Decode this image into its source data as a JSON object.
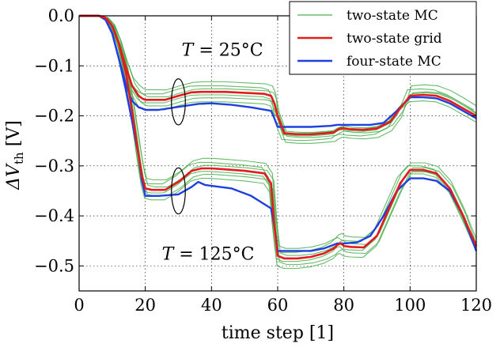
{
  "chart_data": {
    "type": "line",
    "xlabel": "time step [1]",
    "ylabel": {
      "prefix": "ΔV",
      "subscript": "th",
      "suffix": " [V]"
    },
    "xlim": [
      0,
      120
    ],
    "ylim": [
      -0.55,
      0.0
    ],
    "x_ticks": [
      0,
      20,
      40,
      60,
      80,
      100,
      120
    ],
    "x_tick_labels": [
      "0",
      "20",
      "40",
      "60",
      "80",
      "100",
      "120"
    ],
    "y_ticks": [
      0.0,
      -0.1,
      -0.2,
      -0.3,
      -0.4,
      -0.5
    ],
    "y_tick_labels": [
      "0.0",
      "−0.1",
      "−0.2",
      "−0.3",
      "−0.4",
      "−0.5"
    ],
    "grid": true,
    "legend_position": "top-right",
    "annotations": [
      {
        "text": "T = 25°C",
        "italic_prefix": "T",
        "rest": " = 25°C",
        "x": 31,
        "y": -0.067
      },
      {
        "text": "T = 125°C",
        "italic_prefix": "T",
        "rest": " = 125°C",
        "x": 25,
        "y": -0.475
      }
    ],
    "ellipses": [
      {
        "cx": 30,
        "cy": -0.172,
        "rx": 2.1,
        "ry": 0.046
      },
      {
        "cx": 30,
        "cy": -0.35,
        "rx": 2.1,
        "ry": 0.046
      }
    ],
    "series": [
      {
        "name": "two-state MC",
        "color": "#4caf50",
        "style": "thin",
        "mc_offsets": {
          "t25_a": [
            -0.012,
            -0.006,
            0.0,
            0.006,
            0.012,
            0.02,
            -0.02
          ],
          "t25_b": [
            0.004,
            0.002,
            0.0,
            -0.006,
            -0.012,
            -0.018,
            -0.003
          ],
          "t25_c": [
            0.004,
            -0.004,
            0.0,
            0.006,
            0.012,
            0.02,
            -0.012
          ],
          "t125_a": [
            -0.012,
            -0.006,
            0.0,
            0.006,
            0.012,
            0.02,
            -0.02
          ],
          "t125_b": [
            -0.012,
            -0.006,
            0.0,
            0.006,
            0.012,
            0.02,
            -0.02
          ],
          "t125_c": [
            -0.004,
            -0.002,
            0.0,
            0.004,
            0.008,
            0.014,
            -0.008
          ],
          "x_shift": [
            0.6,
            -0.4,
            0.2,
            0.8,
            -0.8,
            0.4,
            -0.2
          ]
        }
      },
      {
        "name": "two-state grid",
        "color": "#e41a1c",
        "style": "thick",
        "t25": {
          "x": [
            0,
            6,
            8,
            10,
            12,
            14,
            16,
            18,
            19,
            20,
            22,
            26,
            30,
            34,
            37,
            40,
            44,
            50,
            56,
            58,
            59,
            60,
            62,
            66,
            70,
            74,
            77,
            78,
            79,
            80,
            82,
            86,
            90,
            94,
            97,
            100,
            104,
            108,
            112,
            116,
            120
          ],
          "y": [
            0.0,
            0.0,
            -0.004,
            -0.02,
            -0.055,
            -0.1,
            -0.14,
            -0.16,
            -0.165,
            -0.168,
            -0.168,
            -0.168,
            -0.16,
            -0.153,
            -0.152,
            -0.152,
            -0.152,
            -0.154,
            -0.156,
            -0.16,
            -0.175,
            -0.2,
            -0.235,
            -0.237,
            -0.237,
            -0.235,
            -0.233,
            -0.228,
            -0.225,
            -0.225,
            -0.227,
            -0.228,
            -0.225,
            -0.212,
            -0.185,
            -0.16,
            -0.158,
            -0.16,
            -0.17,
            -0.185,
            -0.2
          ]
        },
        "t125": {
          "x": [
            0,
            6,
            8,
            10,
            12,
            14,
            16,
            18,
            19,
            20,
            22,
            26,
            30,
            34,
            37,
            40,
            44,
            50,
            56,
            58,
            59,
            60,
            62,
            66,
            70,
            74,
            77,
            78,
            79,
            80,
            82,
            86,
            90,
            94,
            97,
            100,
            104,
            108,
            112,
            116,
            120
          ],
          "y": [
            0.0,
            0.0,
            -0.004,
            -0.02,
            -0.055,
            -0.11,
            -0.19,
            -0.28,
            -0.32,
            -0.345,
            -0.348,
            -0.348,
            -0.332,
            -0.31,
            -0.305,
            -0.305,
            -0.307,
            -0.31,
            -0.315,
            -0.335,
            -0.42,
            -0.48,
            -0.485,
            -0.485,
            -0.482,
            -0.475,
            -0.465,
            -0.458,
            -0.455,
            -0.46,
            -0.462,
            -0.463,
            -0.44,
            -0.38,
            -0.335,
            -0.308,
            -0.308,
            -0.315,
            -0.345,
            -0.4,
            -0.46
          ]
        }
      },
      {
        "name": "four-state MC",
        "color": "#1f3fe0",
        "style": "thick",
        "t25": {
          "x": [
            0,
            6,
            8,
            10,
            12,
            14,
            16,
            18,
            19,
            20,
            24,
            30,
            36,
            40,
            46,
            52,
            58,
            59,
            60,
            64,
            70,
            76,
            78,
            80,
            84,
            88,
            92,
            96,
            100,
            104,
            108,
            112,
            116,
            120
          ],
          "y": [
            0.0,
            0.0,
            -0.008,
            -0.035,
            -0.085,
            -0.135,
            -0.17,
            -0.183,
            -0.185,
            -0.188,
            -0.188,
            -0.182,
            -0.176,
            -0.175,
            -0.178,
            -0.183,
            -0.19,
            -0.205,
            -0.222,
            -0.222,
            -0.222,
            -0.22,
            -0.218,
            -0.218,
            -0.218,
            -0.218,
            -0.214,
            -0.19,
            -0.163,
            -0.163,
            -0.165,
            -0.175,
            -0.19,
            -0.205
          ]
        },
        "t125": {
          "x": [
            0,
            6,
            8,
            10,
            12,
            14,
            16,
            18,
            19,
            20,
            24,
            30,
            34,
            36,
            38,
            40,
            46,
            52,
            58,
            59,
            60,
            64,
            70,
            74,
            76,
            78,
            80,
            84,
            88,
            92,
            96,
            100,
            104,
            108,
            112,
            116,
            120
          ],
          "y": [
            0.0,
            0.0,
            -0.008,
            -0.035,
            -0.085,
            -0.145,
            -0.21,
            -0.28,
            -0.33,
            -0.36,
            -0.36,
            -0.357,
            -0.342,
            -0.332,
            -0.338,
            -0.34,
            -0.345,
            -0.36,
            -0.385,
            -0.42,
            -0.47,
            -0.47,
            -0.47,
            -0.465,
            -0.46,
            -0.455,
            -0.455,
            -0.453,
            -0.44,
            -0.4,
            -0.35,
            -0.325,
            -0.325,
            -0.33,
            -0.35,
            -0.4,
            -0.47
          ]
        }
      }
    ]
  }
}
